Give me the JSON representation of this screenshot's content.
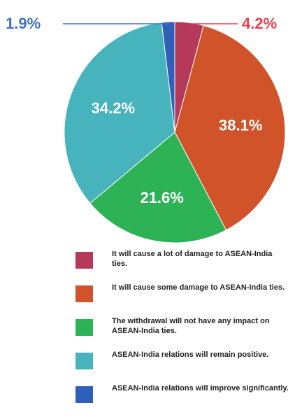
{
  "chart_data": {
    "type": "pie",
    "slices": [
      {
        "label": "It will cause a lot of damage to ASEAN-India ties.",
        "value": 4.2,
        "value_label": "4.2%",
        "color": "#b53a5a",
        "label_placement": "outside-right"
      },
      {
        "label": "It will cause some damage to ASEAN-India ties.",
        "value": 38.1,
        "value_label": "38.1%",
        "color": "#d0532a",
        "label_placement": "inside"
      },
      {
        "label": "The withdrawal will not have any impact on ASEAN-India ties.",
        "value": 21.6,
        "value_label": "21.6%",
        "color": "#2db356",
        "label_placement": "inside"
      },
      {
        "label": "ASEAN-India relations will remain positive.",
        "value": 34.2,
        "value_label": "34.2%",
        "color": "#47b3bd",
        "label_placement": "inside"
      },
      {
        "label": "ASEAN-India relations will improve significantly.",
        "value": 1.9,
        "value_label": "1.9%",
        "color": "#2f5fb8",
        "label_placement": "outside-left"
      }
    ],
    "start": "12 o'clock",
    "direction": "clockwise",
    "legend_placement": "bottom"
  }
}
